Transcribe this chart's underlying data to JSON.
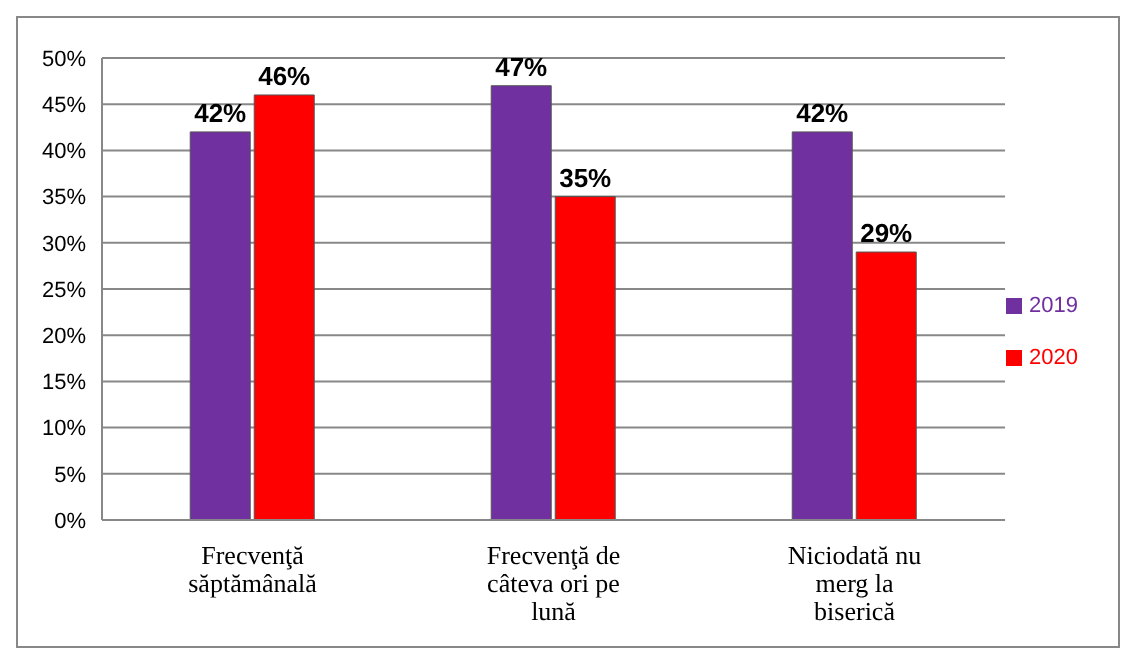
{
  "chart_data": {
    "type": "bar",
    "categories": [
      "Frecvenţă săptămânală",
      "Frecvenţă de câteva ori pe lună",
      "Niciodată nu merg la biserică"
    ],
    "series": [
      {
        "name": "2019",
        "color": "#7030a0",
        "values": [
          42,
          47,
          42
        ],
        "value_labels": [
          "42%",
          "47%",
          "42%"
        ]
      },
      {
        "name": "2020",
        "color": "#ff0000",
        "values": [
          46,
          35,
          29
        ],
        "value_labels": [
          "46%",
          "35%",
          "29%"
        ]
      }
    ],
    "ylim": [
      0,
      50
    ],
    "yticks": [
      {
        "value": 0,
        "label": "0%"
      },
      {
        "value": 5,
        "label": "5%"
      },
      {
        "value": 10,
        "label": "10%"
      },
      {
        "value": 15,
        "label": "15%"
      },
      {
        "value": 20,
        "label": "20%"
      },
      {
        "value": 25,
        "label": "25%"
      },
      {
        "value": 30,
        "label": "30%"
      },
      {
        "value": 35,
        "label": "35%"
      },
      {
        "value": 40,
        "label": "40%"
      },
      {
        "value": 45,
        "label": "45%"
      },
      {
        "value": 50,
        "label": "50%"
      }
    ],
    "grid": "y",
    "legend": "right"
  }
}
